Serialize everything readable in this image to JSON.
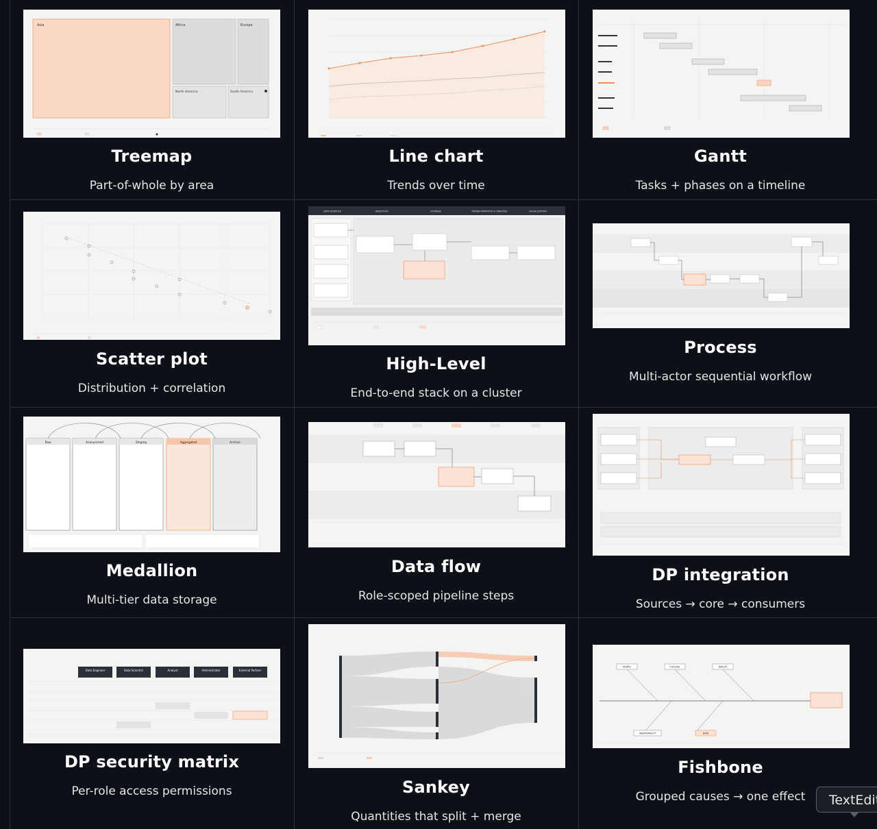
{
  "cards": [
    {
      "title": "Treemap",
      "subtitle": "Part-of-whole by area"
    },
    {
      "title": "Line chart",
      "subtitle": "Trends over time"
    },
    {
      "title": "Gantt",
      "subtitle": "Tasks + phases on a timeline"
    },
    {
      "title": "Scatter plot",
      "subtitle": "Distribution + correlation"
    },
    {
      "title": "High-Level",
      "subtitle": "End-to-end stack on a cluster"
    },
    {
      "title": "Process",
      "subtitle": "Multi-actor sequential workflow"
    },
    {
      "title": "Medallion",
      "subtitle": "Multi-tier data storage"
    },
    {
      "title": "Data flow",
      "subtitle": "Role-scoped pipeline steps"
    },
    {
      "title": "DP integration",
      "subtitle": "Sources → core → consumers"
    },
    {
      "title": "DP security matrix",
      "subtitle": "Per-role access permissions"
    },
    {
      "title": "Sankey",
      "subtitle": "Quantities that split + merge"
    },
    {
      "title": "Fishbone",
      "subtitle": "Grouped causes → one effect"
    }
  ],
  "thumbnails": {
    "treemap": {
      "regions": [
        "Asia",
        "Africa",
        "Europe",
        "North America",
        "South America"
      ]
    },
    "highlevel": {
      "stages": [
        "DATA SOURCES",
        "INGESTION",
        "STORAGE",
        "TRANSFORMATION & ANALYSIS",
        "VISUALIZATION"
      ]
    },
    "medallion": {
      "tiers": [
        "Raw",
        "Anonymized",
        "Staging",
        "Aggregated",
        "Archive"
      ]
    },
    "security": {
      "roles": [
        "Data Engineer",
        "Data Scientist",
        "Analyst",
        "Administrator",
        "External Partner"
      ]
    },
    "fishbone": {
      "categories": [
        "PEOPLE",
        "TOOLING",
        "DEPLOY",
        "OBSERVABILITY",
        "DATA"
      ]
    }
  },
  "tooltip": {
    "text": "TextEdit"
  },
  "colors": {
    "background": "#0d1017",
    "accent": "#f2a882",
    "thumb_bg": "#f4f4f3"
  }
}
